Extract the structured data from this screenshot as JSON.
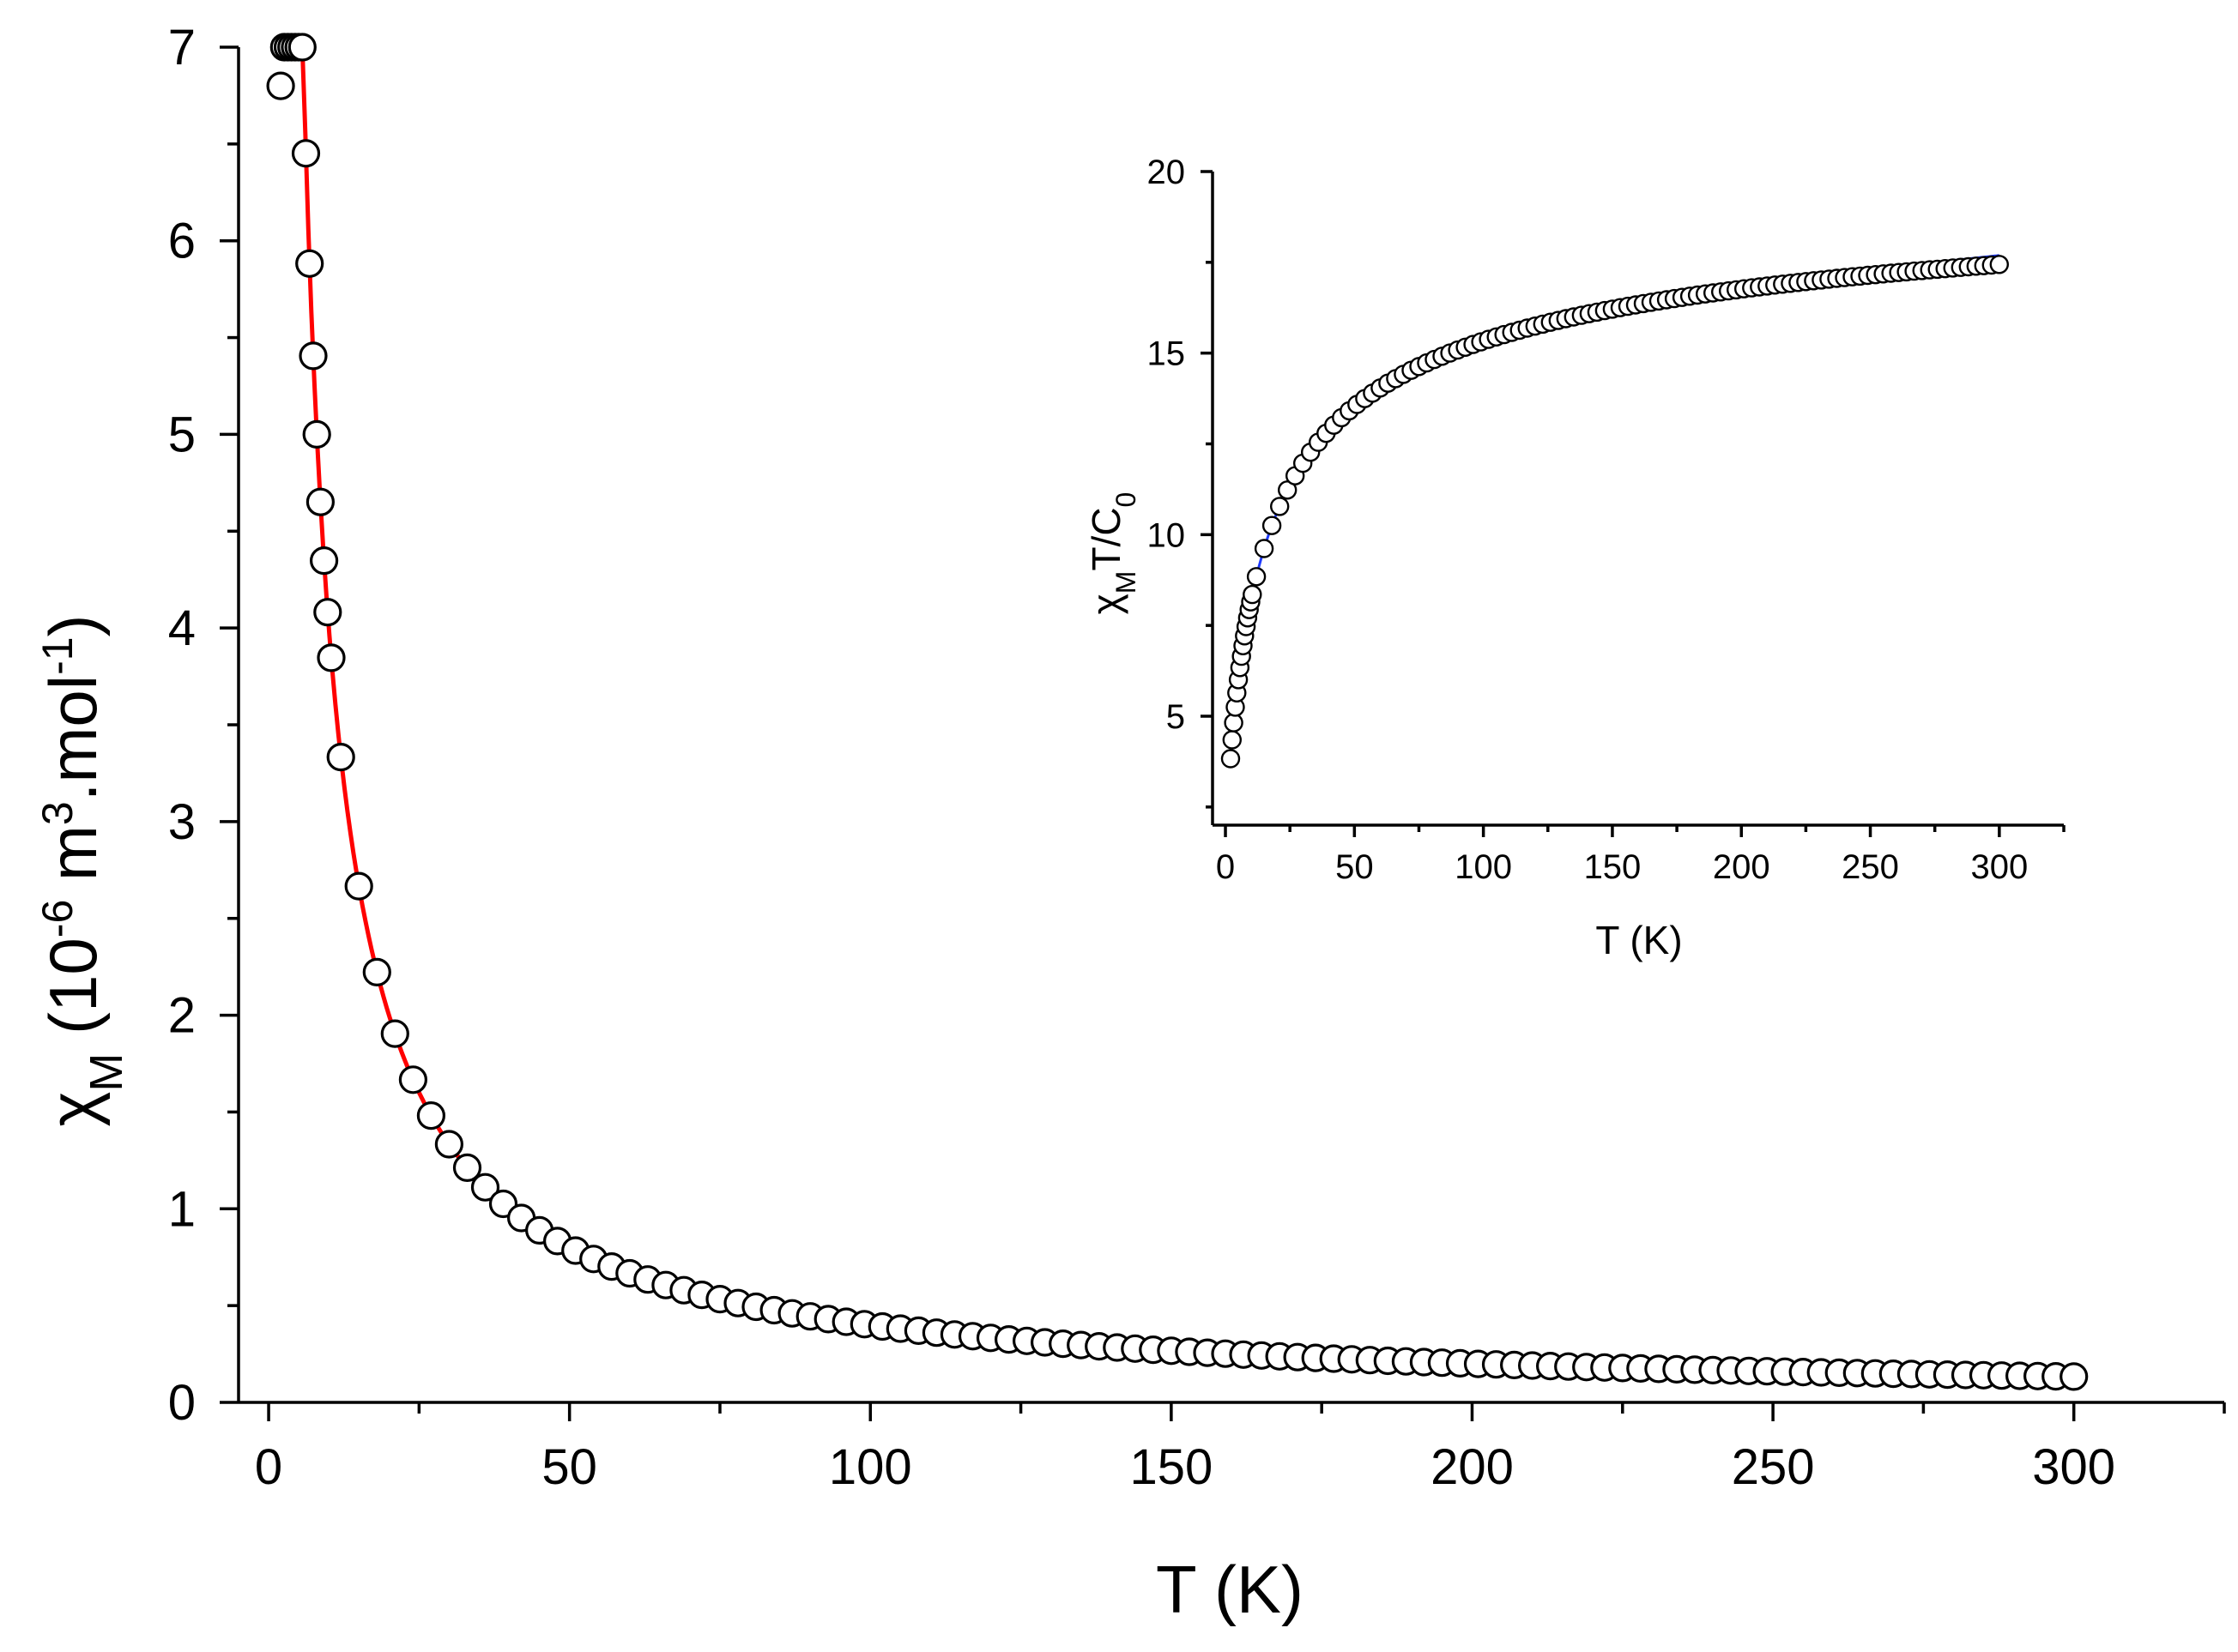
{
  "chart_data": [
    {
      "type": "scatter",
      "name": "main",
      "xlabel": "T (K)",
      "ylabel": {
        "symbol": "χ",
        "sub": "M",
        "text": " (10",
        "exp1": "-6",
        "mid": " m",
        "exp2": "3",
        "mid2": ".mol",
        "exp3": "-1",
        "end": ")"
      },
      "xlim": [
        -5,
        325
      ],
      "ylim": [
        0,
        7
      ],
      "xticks": [
        0,
        50,
        100,
        150,
        200,
        250,
        300
      ],
      "yticks": [
        0,
        1,
        2,
        3,
        4,
        5,
        6,
        7
      ],
      "series": [
        {
          "name": "data",
          "kind": "markers",
          "color": "#000000",
          "model": {
            "C": 40,
            "theta": 0,
            "Tmin": 2,
            "Tmax": 300,
            "lowT": [
              2,
              2.6,
              3.2,
              3.8,
              4.4,
              5,
              5.6,
              6.2,
              6.8,
              7.4,
              8,
              8.6,
              9.2,
              9.8,
              10.4
            ],
            "highT_start": 12,
            "highT_step": 3
          }
        },
        {
          "name": "fit",
          "kind": "line",
          "color": "#ff0000",
          "model": {
            "C": 40,
            "Tmin": 2.1,
            "Tmax": 300
          }
        }
      ]
    },
    {
      "type": "scatter",
      "name": "inset",
      "xlabel": "T (K)",
      "ylabel": {
        "symbol": "χ",
        "sub": "M",
        "text": "T/C",
        "sub2": "0"
      },
      "xlim": [
        -5,
        325
      ],
      "ylim": [
        2,
        20
      ],
      "xticks": [
        0,
        50,
        100,
        150,
        200,
        250,
        300
      ],
      "yticks": [
        5,
        10,
        15,
        20
      ],
      "series": [
        {
          "name": "data",
          "kind": "markers",
          "color": "#000000"
        },
        {
          "name": "fit",
          "kind": "line",
          "color": "#1f3bff"
        }
      ]
    }
  ]
}
